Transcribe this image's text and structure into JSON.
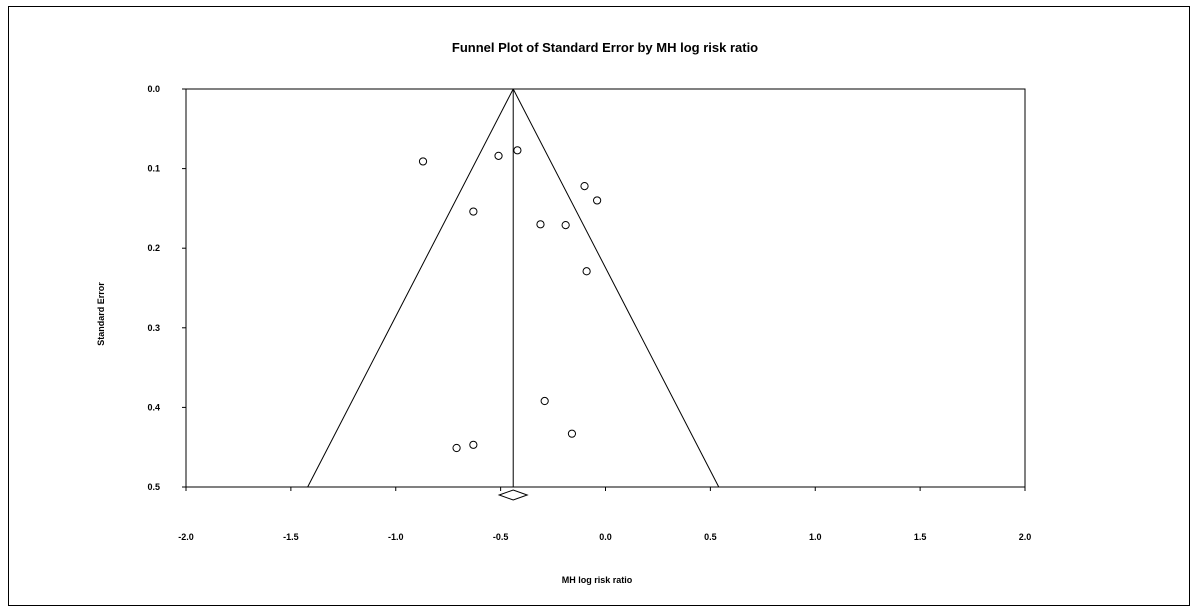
{
  "chart_data": {
    "type": "scatter",
    "title": "Funnel Plot of Standard Error by MH log risk ratio",
    "xlabel": "MH log risk ratio",
    "ylabel": "Standard Error",
    "xlim": [
      -2.0,
      2.0
    ],
    "ylim": [
      0.0,
      0.5
    ],
    "y_inverted": true,
    "x_ticks": [
      "-2.0",
      "-1.5",
      "-1.0",
      "-0.5",
      "0.0",
      "0.5",
      "1.0",
      "1.5",
      "2.0"
    ],
    "y_ticks": [
      "0.0",
      "0.1",
      "0.2",
      "0.3",
      "0.4",
      "0.5"
    ],
    "pooled_estimate": -0.44,
    "points": [
      {
        "x": -0.87,
        "y": 0.091
      },
      {
        "x": -0.51,
        "y": 0.084
      },
      {
        "x": -0.42,
        "y": 0.077
      },
      {
        "x": -0.1,
        "y": 0.122
      },
      {
        "x": -0.04,
        "y": 0.14
      },
      {
        "x": -0.63,
        "y": 0.154
      },
      {
        "x": -0.31,
        "y": 0.17
      },
      {
        "x": -0.19,
        "y": 0.171
      },
      {
        "x": -0.09,
        "y": 0.229
      },
      {
        "x": -0.29,
        "y": 0.392
      },
      {
        "x": -0.16,
        "y": 0.433
      },
      {
        "x": -0.63,
        "y": 0.447
      },
      {
        "x": -0.71,
        "y": 0.451
      }
    ],
    "grid": false,
    "legend": "none"
  }
}
